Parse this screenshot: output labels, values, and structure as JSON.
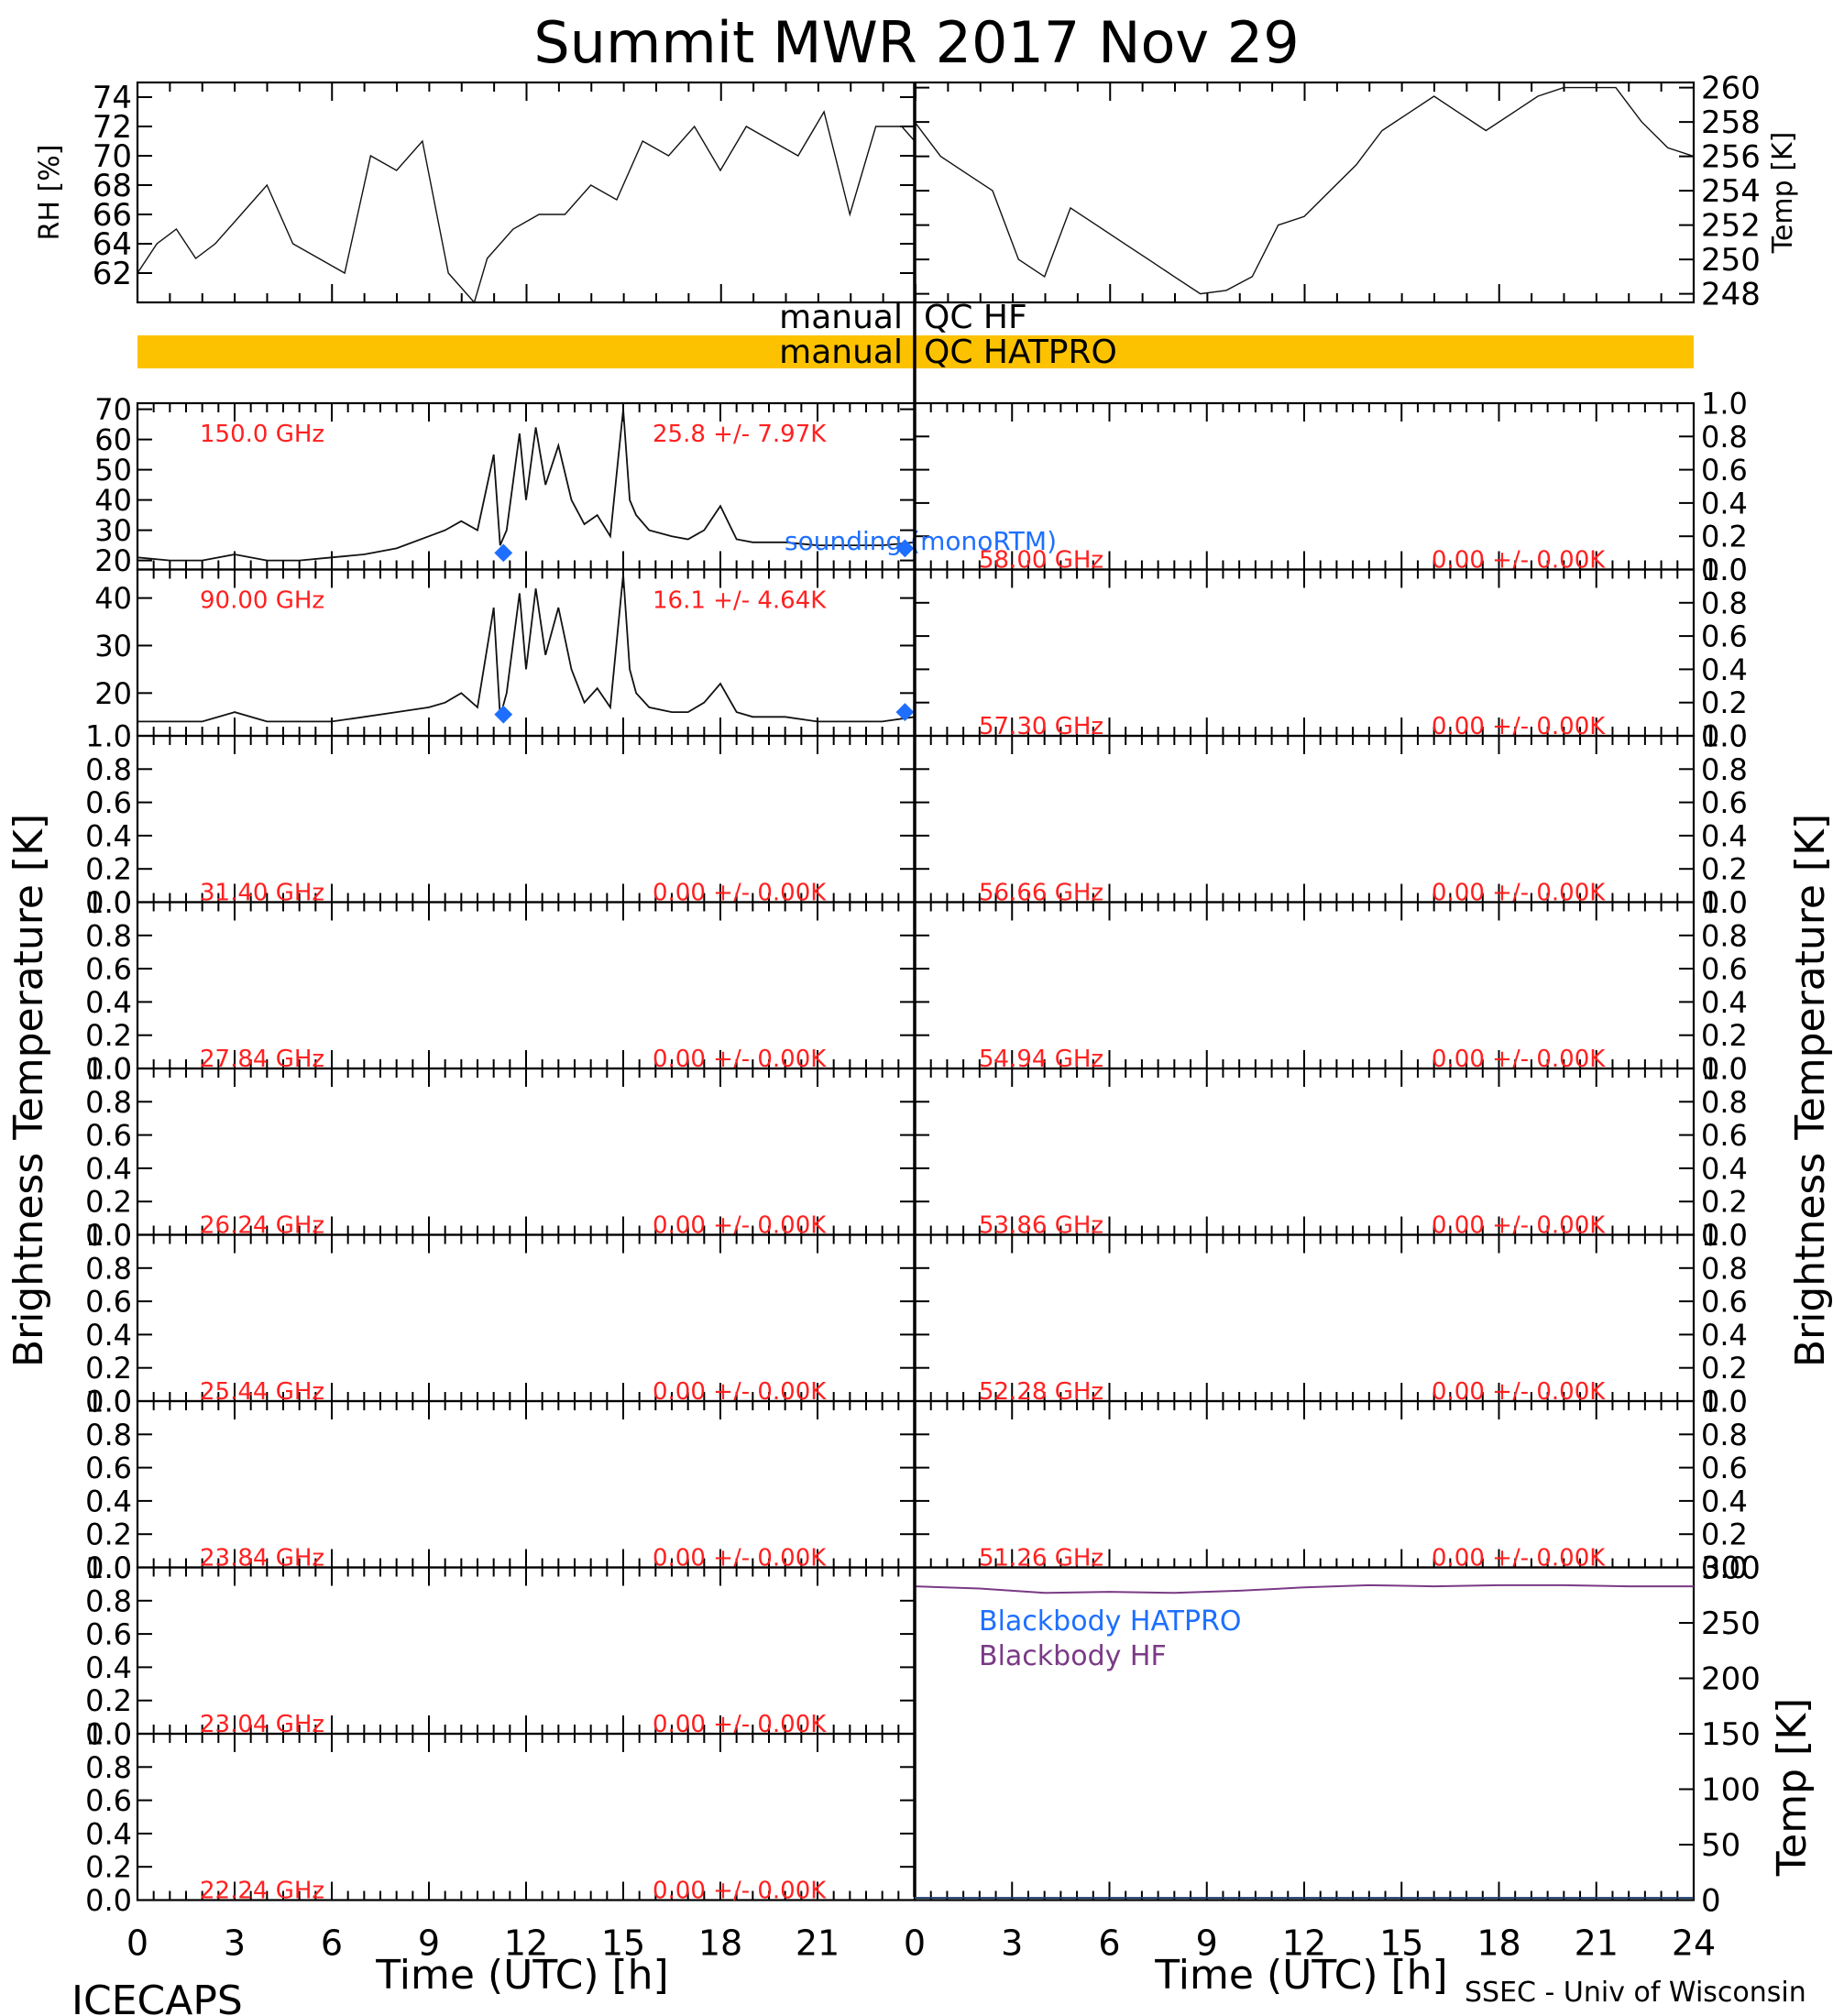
{
  "title": "Summit MWR 2017 Nov 29",
  "footer": {
    "left": "ICECAPS",
    "right": "SSEC - Univ of Wisconsin"
  },
  "colors": {
    "trace": "#111111",
    "label_red": "#ff2020",
    "sounding_blue": "#1e6fff",
    "qc_bar": "#fcc200",
    "blackbody_hf": "#7a3a86",
    "blackbody_hatpro": "#1e6fff"
  },
  "chart_data": [
    {
      "id": "rh",
      "type": "line",
      "ylabel": "RH [%]",
      "xlim": [
        0,
        12
      ],
      "ylim": [
        60,
        75
      ],
      "yticks": [
        "62",
        "64",
        "66",
        "68",
        "70",
        "72",
        "74"
      ],
      "x": [
        0.0,
        0.3,
        0.6,
        0.9,
        1.2,
        1.6,
        2.0,
        2.4,
        2.8,
        3.2,
        3.6,
        4.0,
        4.4,
        4.8,
        5.2,
        5.4,
        5.8,
        6.2,
        6.6,
        7.0,
        7.4,
        7.8,
        8.2,
        8.6,
        9.0,
        9.4,
        9.8,
        10.2,
        10.6,
        11.0,
        11.4,
        11.8,
        12.0
      ],
      "y": [
        62,
        64,
        65,
        63,
        64,
        66,
        68,
        64,
        63,
        62,
        70,
        69,
        71,
        62,
        60,
        63,
        65,
        66,
        66,
        68,
        67,
        71,
        70,
        72,
        69,
        72,
        71,
        70,
        73,
        66,
        72,
        72,
        71
      ]
    },
    {
      "id": "temp",
      "type": "line",
      "ylabel": "Temp [K]",
      "xlim": [
        12,
        24
      ],
      "ylim": [
        247.5,
        260.3
      ],
      "yticks": [
        "248",
        "250",
        "252",
        "254",
        "256",
        "258",
        "260"
      ],
      "x": [
        12.0,
        12.4,
        12.8,
        13.2,
        13.6,
        14.0,
        14.4,
        14.8,
        15.2,
        15.6,
        16.0,
        16.4,
        16.8,
        17.2,
        17.6,
        18.0,
        18.4,
        18.8,
        19.2,
        19.6,
        20.0,
        20.4,
        20.8,
        21.2,
        21.6,
        22.0,
        22.4,
        22.8,
        23.2,
        23.6,
        24.0
      ],
      "y": [
        258,
        256,
        255,
        254,
        250,
        249,
        253,
        252,
        251,
        250,
        249,
        248,
        248.2,
        249,
        252,
        252.5,
        254,
        255.5,
        257.5,
        258.5,
        259.5,
        258.5,
        257.5,
        258.5,
        259.5,
        260,
        260,
        260,
        258,
        256.5,
        256
      ]
    },
    {
      "id": "150ghz",
      "type": "line",
      "freq_label": "150.0 GHz",
      "stat_label": "25.8 +/-   7.97K",
      "xlim": [
        0,
        24
      ],
      "ylim": [
        17,
        72
      ],
      "yticks": [
        "20",
        "30",
        "40",
        "50",
        "60",
        "70"
      ],
      "x": [
        0,
        1,
        2,
        3,
        4,
        5,
        6,
        7,
        8,
        9,
        9.5,
        10,
        10.5,
        11,
        11.2,
        11.4,
        11.8,
        12,
        12.3,
        12.6,
        13,
        13.4,
        13.8,
        14.2,
        14.6,
        15,
        15.2,
        15.4,
        15.8,
        16.5,
        17,
        17.5,
        18,
        18.5,
        19,
        20,
        21,
        22,
        23,
        24
      ],
      "y": [
        21,
        20,
        20,
        22,
        20,
        20,
        21,
        22,
        24,
        28,
        30,
        33,
        30,
        55,
        25,
        30,
        62,
        40,
        64,
        45,
        58,
        40,
        32,
        35,
        28,
        70,
        40,
        35,
        30,
        28,
        27,
        30,
        38,
        27,
        26,
        26,
        25,
        25,
        25,
        26
      ],
      "sounding_points": [
        [
          11.3,
          22.5
        ],
        [
          23.7,
          24.0
        ]
      ]
    },
    {
      "id": "90ghz",
      "type": "line",
      "freq_label": "90.00 GHz",
      "stat_label": "16.1 +/-   4.64K",
      "xlim": [
        0,
        24
      ],
      "ylim": [
        11,
        46
      ],
      "yticks": [
        "20",
        "30",
        "40"
      ],
      "x": [
        0,
        1,
        2,
        3,
        4,
        5,
        6,
        7,
        8,
        9,
        9.5,
        10,
        10.5,
        11,
        11.2,
        11.4,
        11.8,
        12,
        12.3,
        12.6,
        13,
        13.4,
        13.8,
        14.2,
        14.6,
        15,
        15.2,
        15.4,
        15.8,
        16.5,
        17,
        17.5,
        18,
        18.5,
        19,
        20,
        21,
        22,
        23,
        24
      ],
      "y": [
        14,
        14,
        14,
        16,
        14,
        14,
        14,
        15,
        16,
        17,
        18,
        20,
        17,
        38,
        15,
        20,
        41,
        25,
        42,
        28,
        38,
        25,
        18,
        21,
        17,
        45,
        25,
        20,
        17,
        16,
        16,
        18,
        22,
        16,
        15,
        15,
        14,
        14,
        14,
        15
      ],
      "sounding_points": [
        [
          11.3,
          15.5
        ],
        [
          23.7,
          16.0
        ]
      ]
    },
    {
      "id": "31.40",
      "type": "line",
      "freq_label": "31.40 GHz",
      "stat_label": "0.00 +/-   0.00K",
      "ylim": [
        0,
        1
      ],
      "yticks": [
        "0.0",
        "0.2",
        "0.4",
        "0.6",
        "0.8",
        "1.0"
      ]
    },
    {
      "id": "27.84",
      "type": "line",
      "freq_label": "27.84 GHz",
      "stat_label": "0.00 +/-   0.00K",
      "ylim": [
        0,
        1
      ],
      "yticks": [
        "0.0",
        "0.2",
        "0.4",
        "0.6",
        "0.8",
        "1.0"
      ]
    },
    {
      "id": "26.24",
      "type": "line",
      "freq_label": "26.24 GHz",
      "stat_label": "0.00 +/-   0.00K",
      "ylim": [
        0,
        1
      ],
      "yticks": [
        "0.0",
        "0.2",
        "0.4",
        "0.6",
        "0.8",
        "1.0"
      ]
    },
    {
      "id": "25.44",
      "type": "line",
      "freq_label": "25.44 GHz",
      "stat_label": "0.00 +/-   0.00K",
      "ylim": [
        0,
        1
      ],
      "yticks": [
        "0.0",
        "0.2",
        "0.4",
        "0.6",
        "0.8",
        "1.0"
      ]
    },
    {
      "id": "23.84",
      "type": "line",
      "freq_label": "23.84 GHz",
      "stat_label": "0.00 +/-   0.00K",
      "ylim": [
        0,
        1
      ],
      "yticks": [
        "0.0",
        "0.2",
        "0.4",
        "0.6",
        "0.8",
        "1.0"
      ]
    },
    {
      "id": "23.04",
      "type": "line",
      "freq_label": "23.04 GHz",
      "stat_label": "0.00 +/-   0.00K",
      "ylim": [
        0,
        1
      ],
      "yticks": [
        "0.0",
        "0.2",
        "0.4",
        "0.6",
        "0.8",
        "1.0"
      ]
    },
    {
      "id": "22.24",
      "type": "line",
      "freq_label": "22.24 GHz",
      "stat_label": "0.00 +/-   0.00K",
      "ylim": [
        0,
        1
      ],
      "yticks": [
        "0.0",
        "0.2",
        "0.4",
        "0.6",
        "0.8",
        "1.0"
      ]
    },
    {
      "id": "58.00",
      "type": "line",
      "freq_label": "58.00 GHz",
      "stat_label": "0.00 +/-   0.00K",
      "ylim": [
        0,
        1
      ],
      "yticks": [
        "0.0",
        "0.2",
        "0.4",
        "0.6",
        "0.8",
        "1.0"
      ]
    },
    {
      "id": "57.30",
      "type": "line",
      "freq_label": "57.30 GHz",
      "stat_label": "0.00 +/-   0.00K",
      "ylim": [
        0,
        1
      ],
      "yticks": [
        "0.0",
        "0.2",
        "0.4",
        "0.6",
        "0.8",
        "1.0"
      ]
    },
    {
      "id": "56.66",
      "type": "line",
      "freq_label": "56.66 GHz",
      "stat_label": "0.00 +/-   0.00K",
      "ylim": [
        0,
        1
      ],
      "yticks": [
        "0.0",
        "0.2",
        "0.4",
        "0.6",
        "0.8",
        "1.0"
      ]
    },
    {
      "id": "54.94",
      "type": "line",
      "freq_label": "54.94 GHz",
      "stat_label": "0.00 +/-   0.00K",
      "ylim": [
        0,
        1
      ],
      "yticks": [
        "0.0",
        "0.2",
        "0.4",
        "0.6",
        "0.8",
        "1.0"
      ]
    },
    {
      "id": "53.86",
      "type": "line",
      "freq_label": "53.86 GHz",
      "stat_label": "0.00 +/-   0.00K",
      "ylim": [
        0,
        1
      ],
      "yticks": [
        "0.0",
        "0.2",
        "0.4",
        "0.6",
        "0.8",
        "1.0"
      ]
    },
    {
      "id": "52.28",
      "type": "line",
      "freq_label": "52.28 GHz",
      "stat_label": "0.00 +/-   0.00K",
      "ylim": [
        0,
        1
      ],
      "yticks": [
        "0.0",
        "0.2",
        "0.4",
        "0.6",
        "0.8",
        "1.0"
      ]
    },
    {
      "id": "51.26",
      "type": "line",
      "freq_label": "51.26 GHz",
      "stat_label": "0.00 +/-   0.00K",
      "ylim": [
        0,
        1
      ],
      "yticks": [
        "0.0",
        "0.2",
        "0.4",
        "0.6",
        "0.8",
        "1.0"
      ]
    },
    {
      "id": "blackbody",
      "type": "line",
      "ylabel": "Temp [K]",
      "xlim": [
        0,
        24
      ],
      "ylim": [
        0,
        300
      ],
      "yticks": [
        "0",
        "50",
        "100",
        "150",
        "200",
        "250",
        "300"
      ],
      "legend": [
        "Blackbody HATPRO",
        "Blackbody HF"
      ],
      "series": [
        {
          "name": "Blackbody HF",
          "x": [
            0,
            2,
            4,
            6,
            8,
            10,
            12,
            14,
            16,
            18,
            20,
            22,
            24
          ],
          "y": [
            283,
            281,
            277,
            278,
            277,
            279,
            282,
            284,
            283,
            284,
            284,
            283,
            283
          ]
        },
        {
          "name": "Blackbody HATPRO",
          "x": [
            0,
            24
          ],
          "y": [
            2,
            2
          ]
        }
      ]
    }
  ],
  "qc": {
    "hf_label_left": "manual",
    "hf_label_right": "QC HF",
    "hatpro_label_left": "manual",
    "hatpro_label_right": "QC HATPRO"
  },
  "sounding_label": "sounding (monoRTM)",
  "axes": {
    "ylabel_left": "Brightness Temperature [K]",
    "ylabel_right": "Brightness Temperature [K]",
    "xlabel": "Time (UTC) [h]",
    "xticks_left": [
      "0",
      "3",
      "6",
      "9",
      "12",
      "15",
      "18",
      "21"
    ],
    "xticks_right": [
      "0",
      "3",
      "6",
      "9",
      "12",
      "15",
      "18",
      "21",
      "24"
    ]
  }
}
